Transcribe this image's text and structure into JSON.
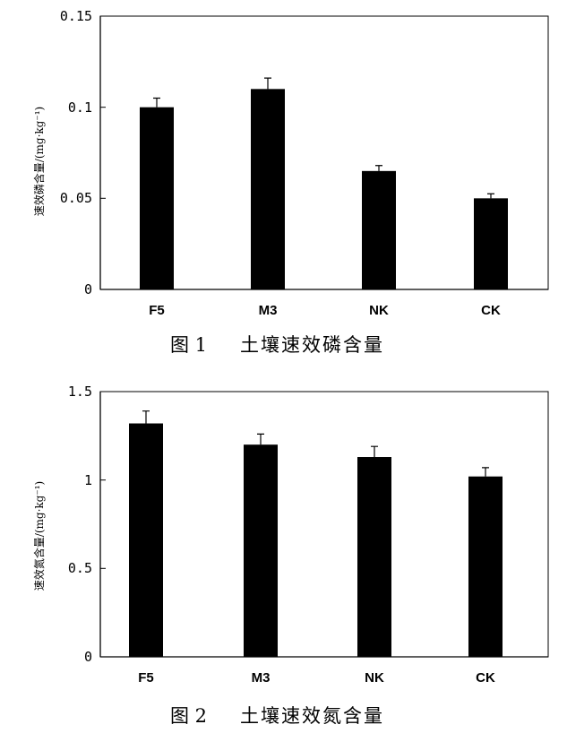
{
  "chart_data": [
    {
      "type": "bar",
      "categories": [
        "F5",
        "M3",
        "NK",
        "CK"
      ],
      "values": [
        0.1,
        0.11,
        0.065,
        0.05
      ],
      "errors": [
        0.005,
        0.006,
        0.003,
        0.0025
      ],
      "yticks": [
        "0",
        "0.05",
        "0.1",
        "0.15"
      ],
      "ytick_values": [
        0,
        0.05,
        0.1,
        0.15
      ],
      "ylim": [
        0,
        0.15
      ],
      "ylabel": "速效磷含量/(mg·kg⁻¹)",
      "caption_num": "图 1",
      "caption_text": "土壤速效磷含量",
      "grid": false,
      "colors": {
        "bar": "#000000"
      }
    },
    {
      "type": "bar",
      "categories": [
        "F5",
        "M3",
        "NK",
        "CK"
      ],
      "values": [
        1.32,
        1.2,
        1.13,
        1.02
      ],
      "errors": [
        0.07,
        0.06,
        0.06,
        0.05
      ],
      "yticks": [
        "0",
        "0.5",
        "1",
        "1.5"
      ],
      "ytick_values": [
        0,
        0.5,
        1,
        1.5
      ],
      "ylim": [
        0,
        1.5
      ],
      "ylabel": "速效氮含量/(mg·kg⁻¹)",
      "caption_num": "图 2",
      "caption_text": "土壤速效氮含量",
      "grid": false,
      "colors": {
        "bar": "#000000"
      }
    }
  ]
}
